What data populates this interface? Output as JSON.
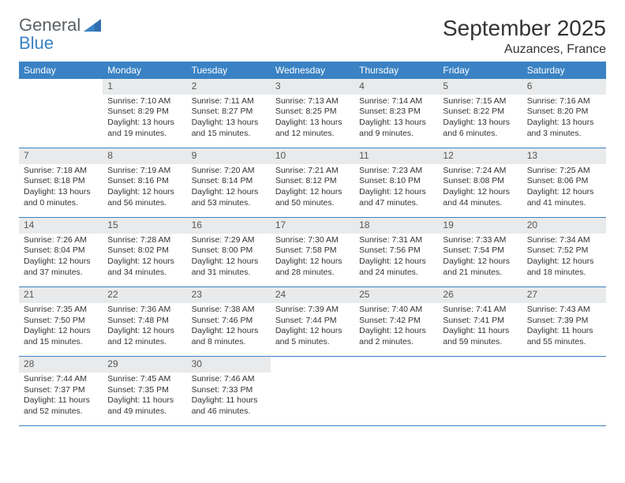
{
  "brand": {
    "part1": "General",
    "part2": "Blue"
  },
  "title": "September 2025",
  "location": "Auzances, France",
  "headerBg": "#3a82c4",
  "dayBg": "#e9eaeb",
  "weekdays": [
    "Sunday",
    "Monday",
    "Tuesday",
    "Wednesday",
    "Thursday",
    "Friday",
    "Saturday"
  ],
  "weeks": [
    {
      "nums": [
        "",
        "1",
        "2",
        "3",
        "4",
        "5",
        "6"
      ],
      "cells": [
        {
          "empty": true
        },
        {
          "sunrise": "Sunrise: 7:10 AM",
          "sunset": "Sunset: 8:29 PM",
          "day1": "Daylight: 13 hours",
          "day2": "and 19 minutes."
        },
        {
          "sunrise": "Sunrise: 7:11 AM",
          "sunset": "Sunset: 8:27 PM",
          "day1": "Daylight: 13 hours",
          "day2": "and 15 minutes."
        },
        {
          "sunrise": "Sunrise: 7:13 AM",
          "sunset": "Sunset: 8:25 PM",
          "day1": "Daylight: 13 hours",
          "day2": "and 12 minutes."
        },
        {
          "sunrise": "Sunrise: 7:14 AM",
          "sunset": "Sunset: 8:23 PM",
          "day1": "Daylight: 13 hours",
          "day2": "and 9 minutes."
        },
        {
          "sunrise": "Sunrise: 7:15 AM",
          "sunset": "Sunset: 8:22 PM",
          "day1": "Daylight: 13 hours",
          "day2": "and 6 minutes."
        },
        {
          "sunrise": "Sunrise: 7:16 AM",
          "sunset": "Sunset: 8:20 PM",
          "day1": "Daylight: 13 hours",
          "day2": "and 3 minutes."
        }
      ]
    },
    {
      "nums": [
        "7",
        "8",
        "9",
        "10",
        "11",
        "12",
        "13"
      ],
      "cells": [
        {
          "sunrise": "Sunrise: 7:18 AM",
          "sunset": "Sunset: 8:18 PM",
          "day1": "Daylight: 13 hours",
          "day2": "and 0 minutes."
        },
        {
          "sunrise": "Sunrise: 7:19 AM",
          "sunset": "Sunset: 8:16 PM",
          "day1": "Daylight: 12 hours",
          "day2": "and 56 minutes."
        },
        {
          "sunrise": "Sunrise: 7:20 AM",
          "sunset": "Sunset: 8:14 PM",
          "day1": "Daylight: 12 hours",
          "day2": "and 53 minutes."
        },
        {
          "sunrise": "Sunrise: 7:21 AM",
          "sunset": "Sunset: 8:12 PM",
          "day1": "Daylight: 12 hours",
          "day2": "and 50 minutes."
        },
        {
          "sunrise": "Sunrise: 7:23 AM",
          "sunset": "Sunset: 8:10 PM",
          "day1": "Daylight: 12 hours",
          "day2": "and 47 minutes."
        },
        {
          "sunrise": "Sunrise: 7:24 AM",
          "sunset": "Sunset: 8:08 PM",
          "day1": "Daylight: 12 hours",
          "day2": "and 44 minutes."
        },
        {
          "sunrise": "Sunrise: 7:25 AM",
          "sunset": "Sunset: 8:06 PM",
          "day1": "Daylight: 12 hours",
          "day2": "and 41 minutes."
        }
      ]
    },
    {
      "nums": [
        "14",
        "15",
        "16",
        "17",
        "18",
        "19",
        "20"
      ],
      "cells": [
        {
          "sunrise": "Sunrise: 7:26 AM",
          "sunset": "Sunset: 8:04 PM",
          "day1": "Daylight: 12 hours",
          "day2": "and 37 minutes."
        },
        {
          "sunrise": "Sunrise: 7:28 AM",
          "sunset": "Sunset: 8:02 PM",
          "day1": "Daylight: 12 hours",
          "day2": "and 34 minutes."
        },
        {
          "sunrise": "Sunrise: 7:29 AM",
          "sunset": "Sunset: 8:00 PM",
          "day1": "Daylight: 12 hours",
          "day2": "and 31 minutes."
        },
        {
          "sunrise": "Sunrise: 7:30 AM",
          "sunset": "Sunset: 7:58 PM",
          "day1": "Daylight: 12 hours",
          "day2": "and 28 minutes."
        },
        {
          "sunrise": "Sunrise: 7:31 AM",
          "sunset": "Sunset: 7:56 PM",
          "day1": "Daylight: 12 hours",
          "day2": "and 24 minutes."
        },
        {
          "sunrise": "Sunrise: 7:33 AM",
          "sunset": "Sunset: 7:54 PM",
          "day1": "Daylight: 12 hours",
          "day2": "and 21 minutes."
        },
        {
          "sunrise": "Sunrise: 7:34 AM",
          "sunset": "Sunset: 7:52 PM",
          "day1": "Daylight: 12 hours",
          "day2": "and 18 minutes."
        }
      ]
    },
    {
      "nums": [
        "21",
        "22",
        "23",
        "24",
        "25",
        "26",
        "27"
      ],
      "cells": [
        {
          "sunrise": "Sunrise: 7:35 AM",
          "sunset": "Sunset: 7:50 PM",
          "day1": "Daylight: 12 hours",
          "day2": "and 15 minutes."
        },
        {
          "sunrise": "Sunrise: 7:36 AM",
          "sunset": "Sunset: 7:48 PM",
          "day1": "Daylight: 12 hours",
          "day2": "and 12 minutes."
        },
        {
          "sunrise": "Sunrise: 7:38 AM",
          "sunset": "Sunset: 7:46 PM",
          "day1": "Daylight: 12 hours",
          "day2": "and 8 minutes."
        },
        {
          "sunrise": "Sunrise: 7:39 AM",
          "sunset": "Sunset: 7:44 PM",
          "day1": "Daylight: 12 hours",
          "day2": "and 5 minutes."
        },
        {
          "sunrise": "Sunrise: 7:40 AM",
          "sunset": "Sunset: 7:42 PM",
          "day1": "Daylight: 12 hours",
          "day2": "and 2 minutes."
        },
        {
          "sunrise": "Sunrise: 7:41 AM",
          "sunset": "Sunset: 7:41 PM",
          "day1": "Daylight: 11 hours",
          "day2": "and 59 minutes."
        },
        {
          "sunrise": "Sunrise: 7:43 AM",
          "sunset": "Sunset: 7:39 PM",
          "day1": "Daylight: 11 hours",
          "day2": "and 55 minutes."
        }
      ]
    },
    {
      "nums": [
        "28",
        "29",
        "30",
        "",
        "",
        "",
        ""
      ],
      "cells": [
        {
          "sunrise": "Sunrise: 7:44 AM",
          "sunset": "Sunset: 7:37 PM",
          "day1": "Daylight: 11 hours",
          "day2": "and 52 minutes."
        },
        {
          "sunrise": "Sunrise: 7:45 AM",
          "sunset": "Sunset: 7:35 PM",
          "day1": "Daylight: 11 hours",
          "day2": "and 49 minutes."
        },
        {
          "sunrise": "Sunrise: 7:46 AM",
          "sunset": "Sunset: 7:33 PM",
          "day1": "Daylight: 11 hours",
          "day2": "and 46 minutes."
        },
        {
          "empty": true
        },
        {
          "empty": true
        },
        {
          "empty": true
        },
        {
          "empty": true
        }
      ]
    }
  ]
}
